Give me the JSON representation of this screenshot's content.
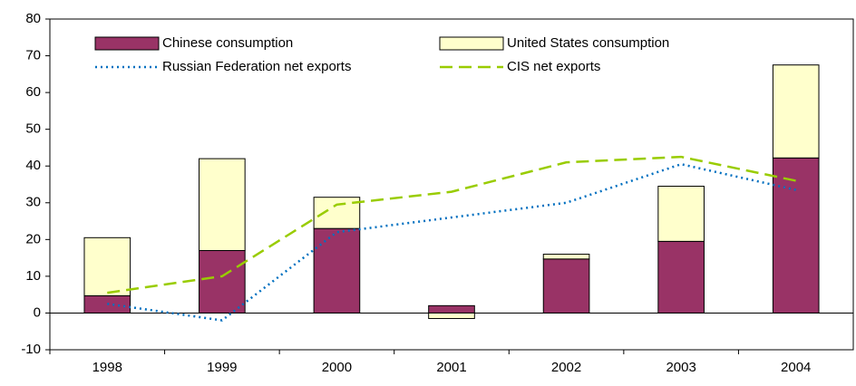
{
  "chart_data": {
    "type": "bar_line",
    "categories": [
      "1998",
      "1999",
      "2000",
      "2001",
      "2002",
      "2003",
      "2004"
    ],
    "series": [
      {
        "name": "Chinese consumption",
        "kind": "bar",
        "color": "#993366",
        "values": [
          4.7,
          17,
          23,
          2,
          14.7,
          19.5,
          42.2
        ]
      },
      {
        "name": "United States consumption",
        "kind": "bar",
        "color": "#ffffcc",
        "values": [
          15.8,
          25,
          8.5,
          -1.5,
          1.3,
          15,
          25.3
        ]
      },
      {
        "name": "Russian Federation net exports",
        "kind": "line",
        "style": "dotted",
        "color": "#0070c0",
        "values": [
          2.5,
          -2,
          22,
          26,
          30,
          40.5,
          33.5
        ]
      },
      {
        "name": "CIS net exports",
        "kind": "line",
        "style": "dashed",
        "color": "#99cc00",
        "values": [
          5.5,
          10,
          29.5,
          33,
          41,
          42.5,
          36
        ]
      }
    ],
    "ylim": [
      -10,
      80
    ],
    "yticks": [
      -10,
      0,
      10,
      20,
      30,
      40,
      50,
      60,
      70,
      80
    ]
  }
}
